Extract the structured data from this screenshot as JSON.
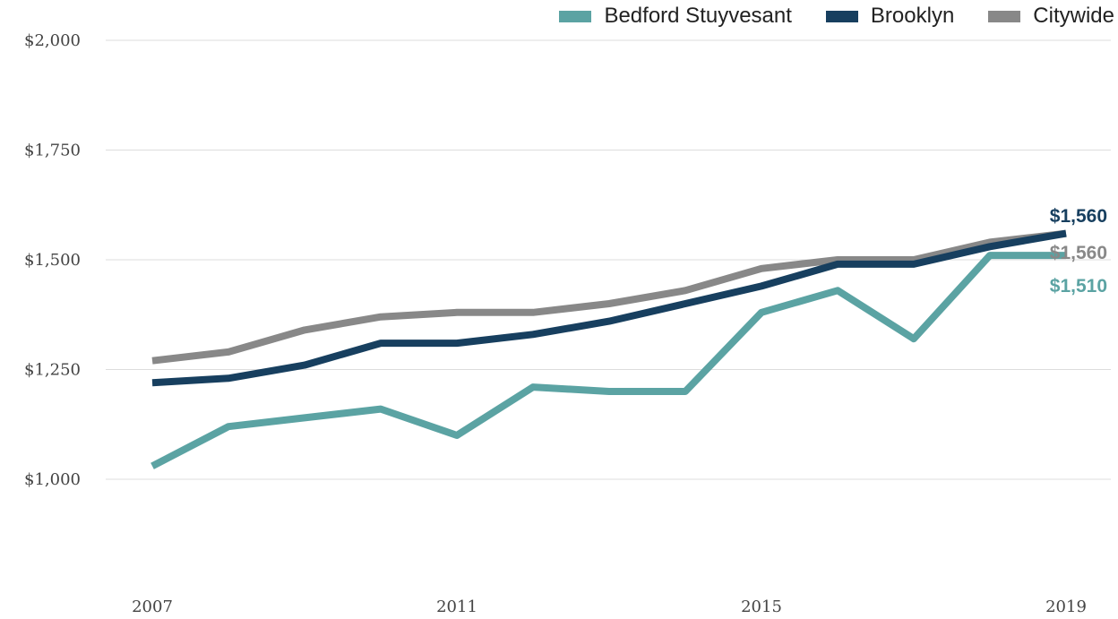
{
  "chart_data": {
    "type": "line",
    "x": [
      2007,
      2008,
      2009,
      2010,
      2011,
      2012,
      2013,
      2014,
      2015,
      2016,
      2017,
      2018,
      2019
    ],
    "x_ticks": [
      "2007",
      "2011",
      "2015",
      "2019"
    ],
    "y_ticks": [
      "$2,000",
      "$1,750",
      "$1,500",
      "$1,250",
      "$1,000"
    ],
    "y_tick_values": [
      2000,
      1750,
      1500,
      1250,
      1000
    ],
    "ylim": [
      760,
      2000
    ],
    "xlim": [
      2007,
      2019
    ],
    "grid": true,
    "legend_position": "top-right",
    "series": [
      {
        "name": "Bedford Stuyvesant",
        "color": "#5ba3a3",
        "values": [
          1030,
          1120,
          1140,
          1160,
          1100,
          1210,
          1200,
          1200,
          1380,
          1430,
          1320,
          1510,
          1510
        ],
        "end_label": "$1,510"
      },
      {
        "name": "Brooklyn",
        "color": "#173f5f",
        "values": [
          1220,
          1230,
          1260,
          1310,
          1310,
          1330,
          1360,
          1400,
          1440,
          1490,
          1490,
          1530,
          1560
        ],
        "end_label": "$1,560"
      },
      {
        "name": "Citywide",
        "color": "#888888",
        "values": [
          1270,
          1290,
          1340,
          1370,
          1380,
          1380,
          1400,
          1430,
          1480,
          1500,
          1500,
          1540,
          1560
        ],
        "end_label": "$1,560"
      }
    ]
  }
}
